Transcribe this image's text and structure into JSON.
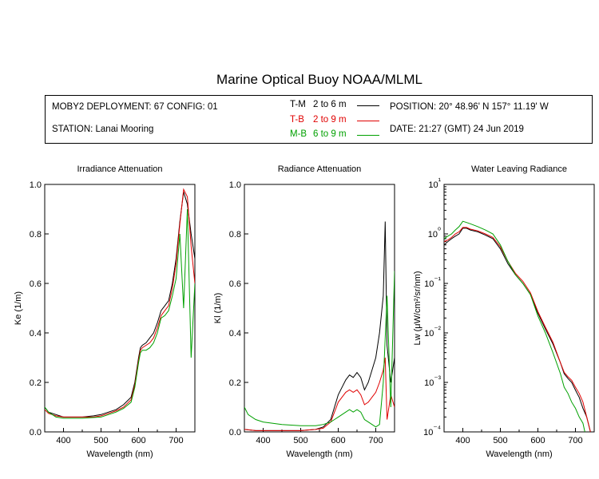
{
  "title": "Marine Optical Buoy NOAA/MLML",
  "info": {
    "deployment": "MOBY2 DEPLOYMENT: 67 CONFIG: 01",
    "station": "STATION: Lanai Mooring",
    "position": "POSITION: 20° 48.96' N   157° 11.19' W",
    "date": "DATE: 21:27 (GMT) 24 Jun 2019",
    "legend": [
      {
        "code": "T-M",
        "range": "2 to 6  m",
        "color": "#000000"
      },
      {
        "code": "T-B",
        "range": "2 to 9  m",
        "color": "#e00000"
      },
      {
        "code": "M-B",
        "range": "6 to 9  m",
        "color": "#00a000"
      }
    ]
  },
  "chart_data": [
    {
      "type": "line",
      "title": "Irradiance Attenuation",
      "xlabel": "Wavelength (nm)",
      "ylabel": "Ke  (1/m)",
      "xlim": [
        350,
        750
      ],
      "ylim": [
        0,
        1.0
      ],
      "xticks": [
        "400",
        "500",
        "600",
        "700"
      ],
      "yticks": [
        "0.0",
        "0.2",
        "0.4",
        "0.6",
        "0.8",
        "1.0"
      ],
      "series": [
        {
          "name": "T-M",
          "color": "#000000",
          "x": [
            350,
            360,
            380,
            400,
            420,
            450,
            480,
            500,
            520,
            540,
            560,
            580,
            590,
            600,
            605,
            610,
            620,
            630,
            640,
            650,
            660,
            670,
            680,
            690,
            700,
            710,
            720,
            730,
            740,
            750
          ],
          "y": [
            0.1,
            0.08,
            0.07,
            0.06,
            0.06,
            0.06,
            0.065,
            0.07,
            0.08,
            0.09,
            0.11,
            0.14,
            0.2,
            0.3,
            0.34,
            0.35,
            0.36,
            0.38,
            0.4,
            0.44,
            0.49,
            0.51,
            0.53,
            0.6,
            0.7,
            0.85,
            0.97,
            0.92,
            0.8,
            0.7
          ]
        },
        {
          "name": "T-B",
          "color": "#e00000",
          "x": [
            350,
            360,
            380,
            400,
            420,
            450,
            480,
            500,
            520,
            540,
            560,
            580,
            590,
            600,
            605,
            610,
            620,
            630,
            640,
            650,
            660,
            670,
            680,
            690,
            700,
            710,
            720,
            730,
            740,
            750
          ],
          "y": [
            0.09,
            0.075,
            0.065,
            0.06,
            0.06,
            0.06,
            0.06,
            0.065,
            0.075,
            0.085,
            0.1,
            0.13,
            0.19,
            0.29,
            0.33,
            0.34,
            0.35,
            0.36,
            0.38,
            0.42,
            0.47,
            0.49,
            0.51,
            0.58,
            0.68,
            0.84,
            0.98,
            0.95,
            0.75,
            0.6
          ]
        },
        {
          "name": "M-B",
          "color": "#00a000",
          "x": [
            350,
            360,
            380,
            400,
            420,
            450,
            480,
            500,
            520,
            540,
            560,
            580,
            590,
            600,
            605,
            610,
            620,
            630,
            640,
            650,
            660,
            670,
            680,
            690,
            700,
            710,
            720,
            730,
            740,
            750
          ],
          "y": [
            0.1,
            0.08,
            0.06,
            0.055,
            0.055,
            0.055,
            0.058,
            0.06,
            0.07,
            0.08,
            0.095,
            0.12,
            0.18,
            0.28,
            0.32,
            0.33,
            0.33,
            0.34,
            0.36,
            0.4,
            0.46,
            0.47,
            0.49,
            0.55,
            0.62,
            0.8,
            0.5,
            0.9,
            0.3,
            0.6
          ]
        }
      ]
    },
    {
      "type": "line",
      "title": "Radiance Attenuation",
      "xlabel": "Wavelength (nm)",
      "ylabel": "Kl  (1/m)",
      "xlim": [
        350,
        750
      ],
      "ylim": [
        0,
        1.0
      ],
      "xticks": [
        "400",
        "500",
        "600",
        "700"
      ],
      "yticks": [
        "0.0",
        "0.2",
        "0.4",
        "0.6",
        "0.8",
        "1.0"
      ],
      "series": [
        {
          "name": "T-M",
          "color": "#000000",
          "x": [
            350,
            380,
            400,
            450,
            500,
            540,
            560,
            580,
            590,
            600,
            610,
            620,
            630,
            640,
            650,
            660,
            670,
            680,
            690,
            700,
            710,
            720,
            725,
            730,
            740,
            750
          ],
          "y": [
            0.01,
            0.005,
            0.005,
            0.005,
            0.005,
            0.01,
            0.02,
            0.05,
            0.1,
            0.15,
            0.18,
            0.21,
            0.23,
            0.22,
            0.24,
            0.22,
            0.17,
            0.2,
            0.25,
            0.3,
            0.4,
            0.55,
            0.85,
            0.35,
            0.2,
            0.3
          ]
        },
        {
          "name": "T-B",
          "color": "#e00000",
          "x": [
            350,
            380,
            400,
            450,
            500,
            540,
            560,
            580,
            590,
            600,
            610,
            620,
            630,
            640,
            650,
            660,
            670,
            680,
            690,
            700,
            710,
            720,
            725,
            730,
            740,
            750
          ],
          "y": [
            0.01,
            0.005,
            0.005,
            0.005,
            0.005,
            0.01,
            0.015,
            0.04,
            0.08,
            0.12,
            0.14,
            0.16,
            0.17,
            0.16,
            0.17,
            0.15,
            0.11,
            0.12,
            0.14,
            0.16,
            0.2,
            0.25,
            0.3,
            0.05,
            0.15,
            0.1
          ]
        },
        {
          "name": "M-B",
          "color": "#00a000",
          "x": [
            350,
            360,
            380,
            400,
            450,
            500,
            540,
            560,
            580,
            590,
            600,
            610,
            620,
            630,
            640,
            650,
            660,
            670,
            680,
            690,
            700,
            710,
            720,
            730,
            740,
            750
          ],
          "y": [
            0.1,
            0.07,
            0.05,
            0.04,
            0.03,
            0.025,
            0.025,
            0.03,
            0.04,
            0.05,
            0.06,
            0.07,
            0.08,
            0.09,
            0.08,
            0.09,
            0.08,
            0.05,
            0.04,
            0.03,
            0.02,
            0.03,
            0.2,
            0.55,
            0.1,
            0.65
          ]
        }
      ]
    },
    {
      "type": "line",
      "title": "Water Leaving Radiance",
      "xlabel": "Wavelength (nm)",
      "ylabel": "Lw  (μW/cm²/sr/nm)",
      "yscale": "log",
      "xlim": [
        350,
        750
      ],
      "ylim": [
        0.0001,
        10
      ],
      "xticks": [
        "400",
        "500",
        "600",
        "700"
      ],
      "yticks": [
        "10⁻⁴",
        "10⁻³",
        "10⁻²",
        "10⁻¹",
        "10⁰",
        "10¹"
      ],
      "series": [
        {
          "name": "T-M",
          "color": "#000000",
          "x": [
            350,
            360,
            370,
            380,
            390,
            400,
            410,
            420,
            440,
            460,
            480,
            500,
            520,
            540,
            560,
            580,
            600,
            620,
            640,
            660,
            670,
            680,
            690,
            700,
            710,
            720,
            730,
            740
          ],
          "y": [
            0.6,
            0.7,
            0.8,
            0.9,
            1.0,
            1.3,
            1.3,
            1.2,
            1.1,
            0.95,
            0.8,
            0.5,
            0.25,
            0.15,
            0.1,
            0.06,
            0.025,
            0.012,
            0.006,
            0.0025,
            0.0015,
            0.0012,
            0.001,
            0.0007,
            0.0005,
            0.0003,
            0.0002,
            0.0001
          ]
        },
        {
          "name": "T-B",
          "color": "#e00000",
          "x": [
            350,
            360,
            370,
            380,
            390,
            400,
            410,
            420,
            440,
            460,
            480,
            500,
            520,
            540,
            560,
            580,
            600,
            620,
            640,
            660,
            670,
            680,
            690,
            700,
            710,
            720,
            730,
            740
          ],
          "y": [
            0.7,
            0.75,
            0.85,
            1.0,
            1.1,
            1.35,
            1.35,
            1.25,
            1.15,
            1.0,
            0.85,
            0.55,
            0.28,
            0.16,
            0.11,
            0.065,
            0.027,
            0.013,
            0.0065,
            0.0025,
            0.0016,
            0.0013,
            0.0011,
            0.0008,
            0.0006,
            0.0004,
            0.0002,
            0.0001
          ]
        },
        {
          "name": "M-B",
          "color": "#00a000",
          "x": [
            350,
            360,
            370,
            380,
            390,
            400,
            410,
            420,
            440,
            460,
            480,
            500,
            520,
            540,
            560,
            580,
            600,
            620,
            640,
            660,
            670,
            680,
            690,
            700,
            710,
            720,
            725
          ],
          "y": [
            0.8,
            0.9,
            1.0,
            1.2,
            1.4,
            1.8,
            1.7,
            1.6,
            1.4,
            1.2,
            1.0,
            0.6,
            0.28,
            0.15,
            0.1,
            0.06,
            0.022,
            0.01,
            0.004,
            0.0015,
            0.0008,
            0.0006,
            0.0004,
            0.0003,
            0.0002,
            0.00015,
            0.0001
          ]
        }
      ]
    }
  ]
}
